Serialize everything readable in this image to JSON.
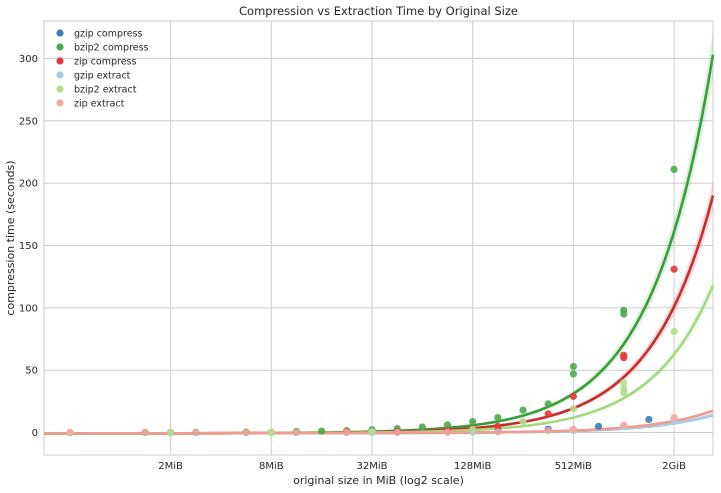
{
  "chart_data": {
    "type": "scatter",
    "title": "Compression vs Extraction Time by Original Size",
    "xlabel": "original size in MiB (log2 scale)",
    "ylabel": "compression time (seconds)",
    "x_scale": "log2",
    "x_range_mib": [
      0.35,
      3500
    ],
    "x_ticks": [
      {
        "value": 2,
        "label": "2MiB"
      },
      {
        "value": 8,
        "label": "8MiB"
      },
      {
        "value": 32,
        "label": "32MiB"
      },
      {
        "value": 128,
        "label": "128MiB"
      },
      {
        "value": 512,
        "label": "512MiB"
      },
      {
        "value": 2048,
        "label": "2GiB"
      }
    ],
    "y_range": [
      -18,
      330
    ],
    "y_ticks": [
      0,
      50,
      100,
      150,
      200,
      250,
      300
    ],
    "grid": true,
    "legend_position": "top-left",
    "series": [
      {
        "name": "gzip compress",
        "color": "#3a7fb8",
        "fit_color": "#3a7fb8",
        "points": [
          [
            0.5,
            0
          ],
          [
            1.41,
            0
          ],
          [
            2.83,
            0
          ],
          [
            5.66,
            0.1
          ],
          [
            11.3,
            0.2
          ],
          [
            22.6,
            0.3
          ],
          [
            45.3,
            0.5
          ],
          [
            90.5,
            0.9
          ],
          [
            181,
            1.6
          ],
          [
            362,
            2.7
          ],
          [
            724,
            5
          ],
          [
            1448,
            10.5
          ]
        ],
        "fit_end": 14
      },
      {
        "name": "bzip2 compress",
        "color": "#4dab4d",
        "fit_color": "#35a035",
        "points": [
          [
            0.5,
            0
          ],
          [
            1.41,
            0.1
          ],
          [
            2.83,
            0.2
          ],
          [
            5.66,
            0.4
          ],
          [
            11.3,
            0.8
          ],
          [
            16,
            1.1
          ],
          [
            22.6,
            1.6
          ],
          [
            32,
            2.3
          ],
          [
            45.3,
            3.2
          ],
          [
            64,
            4.5
          ],
          [
            90.5,
            6.2
          ],
          [
            128,
            8.8
          ],
          [
            181,
            12
          ],
          [
            256,
            18
          ],
          [
            362,
            23
          ],
          [
            512,
            47
          ],
          [
            512,
            53
          ],
          [
            1024,
            95
          ],
          [
            1024,
            98
          ],
          [
            2048,
            211
          ]
        ],
        "fit_end": 303
      },
      {
        "name": "zip compress",
        "color": "#e03a3a",
        "fit_color": "#cc2a2a",
        "points": [
          [
            0.5,
            0
          ],
          [
            2,
            0.1
          ],
          [
            8,
            0.2
          ],
          [
            22.6,
            0.4
          ],
          [
            45.3,
            0.8
          ],
          [
            90.5,
            1.4
          ],
          [
            128,
            3
          ],
          [
            181,
            5
          ],
          [
            362,
            15
          ],
          [
            512,
            29
          ],
          [
            1024,
            60
          ],
          [
            1024,
            62
          ],
          [
            2048,
            131
          ]
        ],
        "fit_end": 190
      },
      {
        "name": "gzip extract",
        "color": "#a8cce4",
        "fit_color": "#a8cce4",
        "points": [
          [
            0.5,
            0
          ],
          [
            2,
            0
          ],
          [
            8,
            0
          ],
          [
            32,
            0
          ],
          [
            128,
            0.2
          ],
          [
            512,
            1.5
          ],
          [
            1024,
            4.5
          ],
          [
            2048,
            10
          ]
        ],
        "fit_end": 14
      },
      {
        "name": "bzip2 extract",
        "color": "#b5dd8a",
        "fit_color": "#a6d97e",
        "points": [
          [
            0.5,
            0
          ],
          [
            2,
            0
          ],
          [
            8,
            0.1
          ],
          [
            32,
            0.6
          ],
          [
            128,
            2.5
          ],
          [
            256,
            9
          ],
          [
            512,
            19
          ],
          [
            1024,
            32
          ],
          [
            1024,
            35
          ],
          [
            1024,
            40
          ],
          [
            2048,
            81
          ]
        ],
        "fit_end": 118
      },
      {
        "name": "zip extract",
        "color": "#f5a8a0",
        "fit_color": "#f29a90",
        "points": [
          [
            0.5,
            0
          ],
          [
            1.41,
            0
          ],
          [
            2.83,
            0
          ],
          [
            5.66,
            0
          ],
          [
            11.3,
            0
          ],
          [
            22.6,
            0.1
          ],
          [
            45.3,
            0.1
          ],
          [
            90.5,
            0.2
          ],
          [
            181,
            0.5
          ],
          [
            362,
            1.5
          ],
          [
            512,
            2.8
          ],
          [
            1024,
            6
          ],
          [
            2048,
            12
          ]
        ],
        "fit_end": 17.5
      }
    ]
  }
}
